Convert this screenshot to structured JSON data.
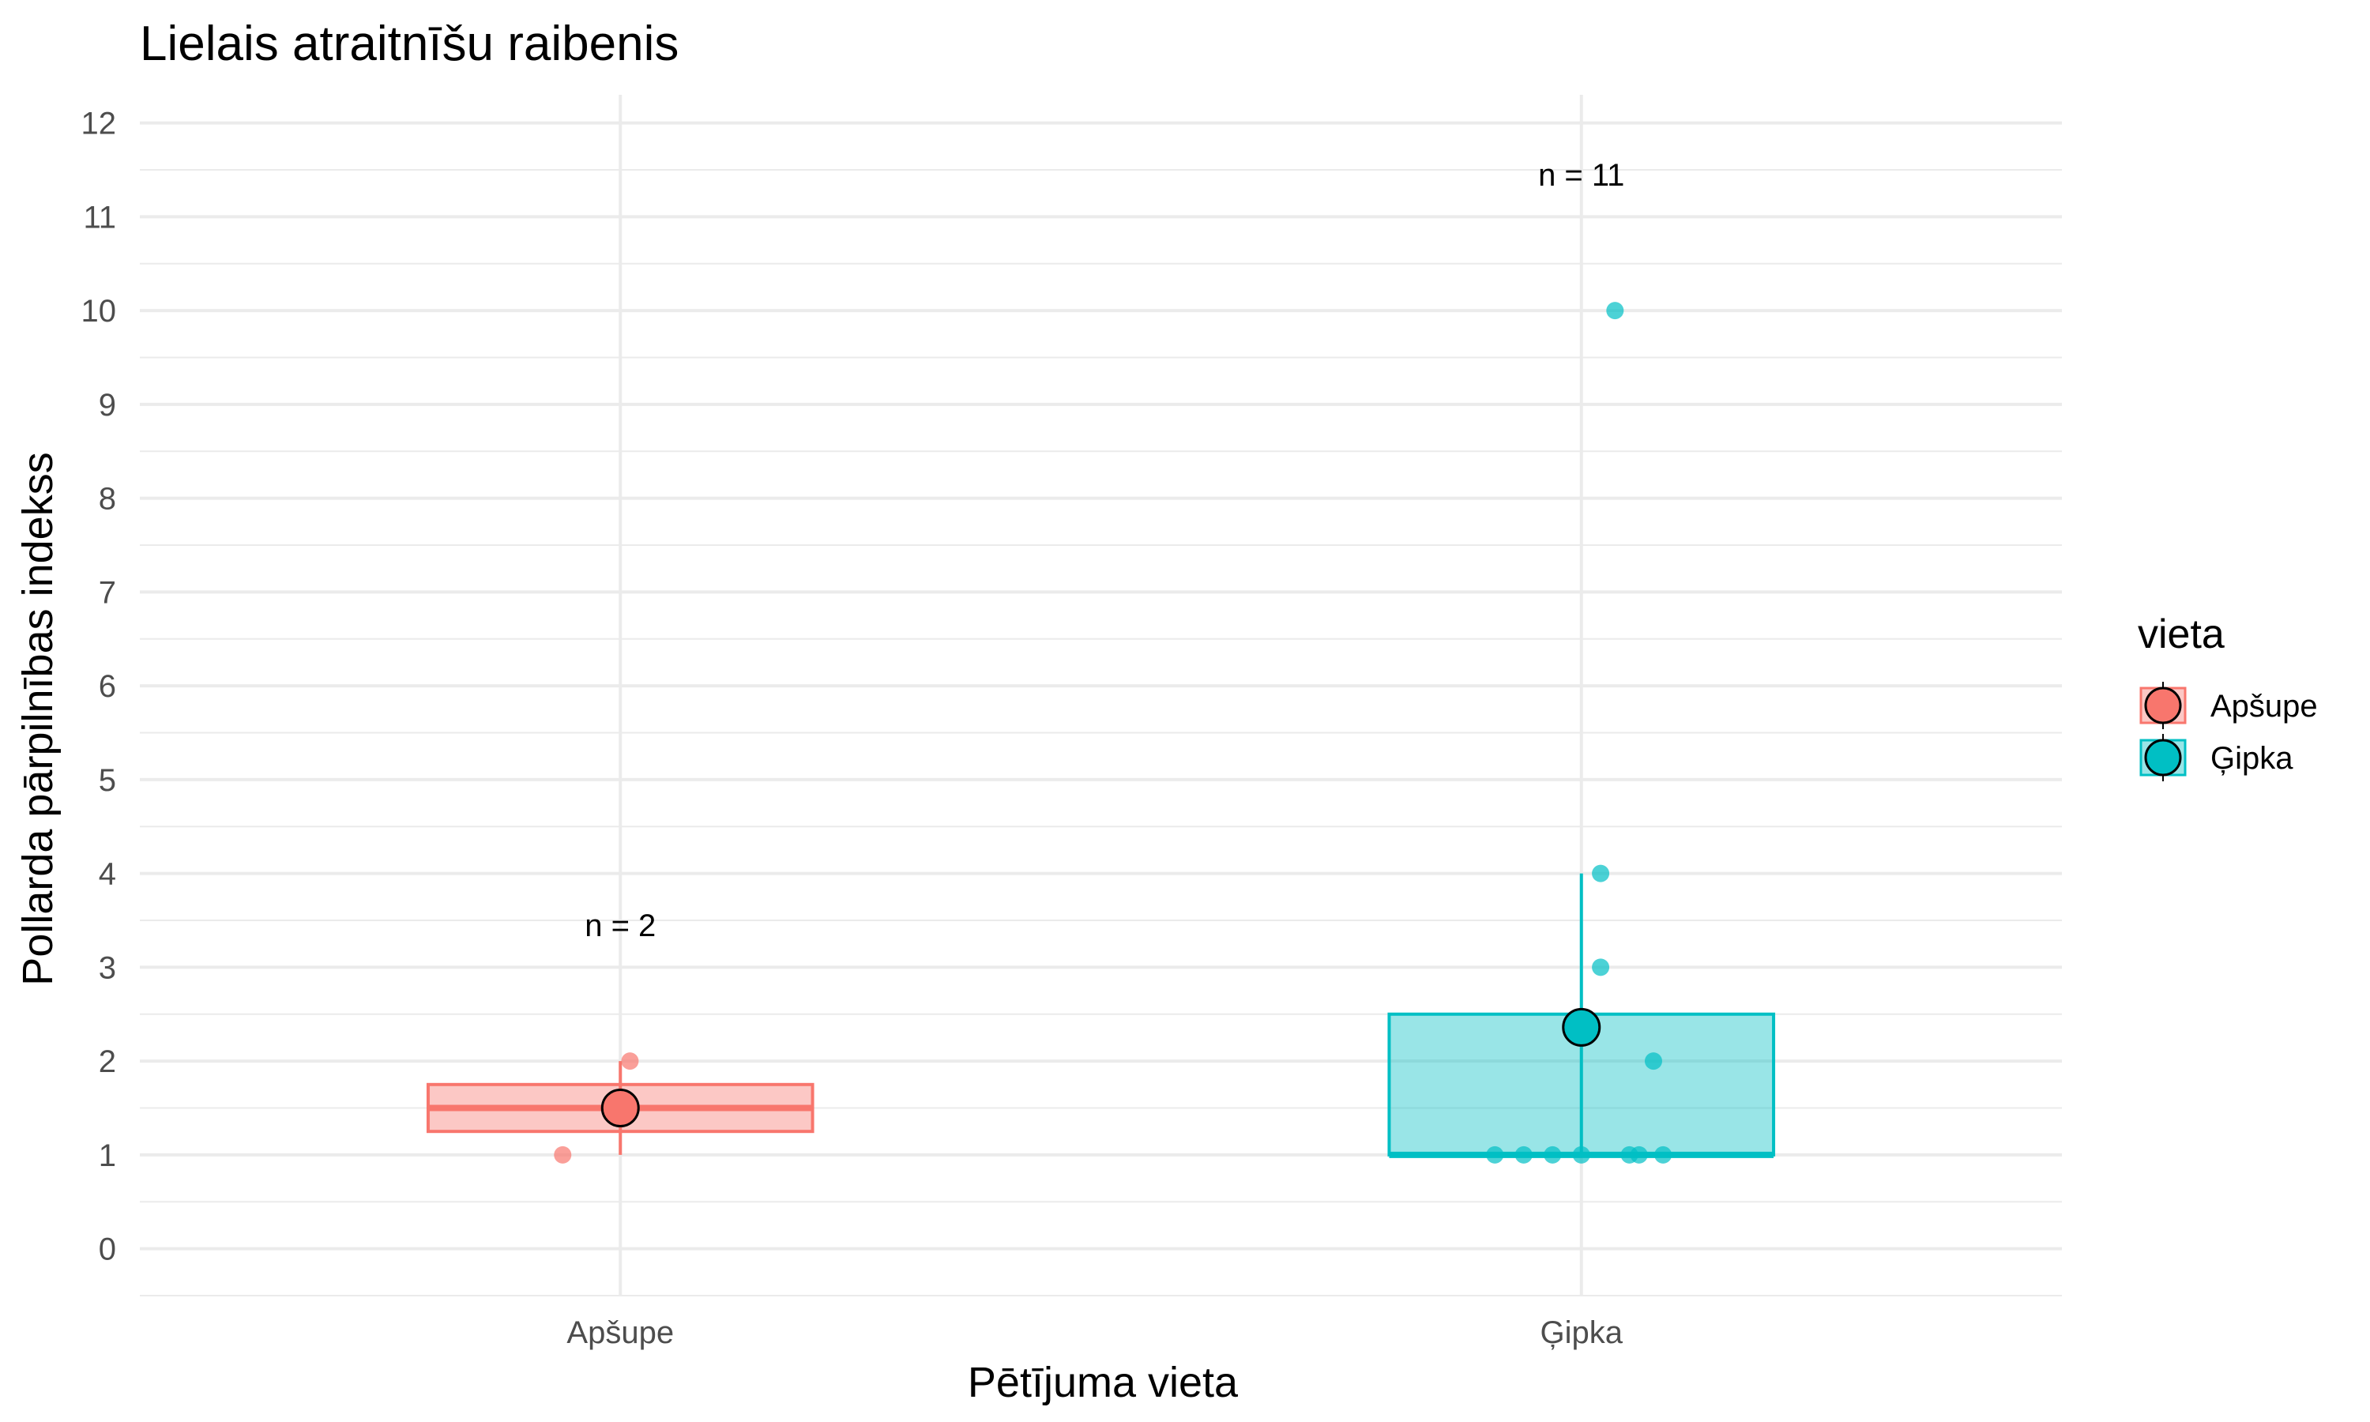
{
  "chart_data": {
    "type": "boxplot",
    "title": "Lielais atraitnīšu raibenis",
    "xlabel": "Pētījuma vieta",
    "ylabel": "Pollarda pārpilnības indekss",
    "ylim": [
      -0.5,
      12.3
    ],
    "yticks": [
      0,
      1,
      2,
      3,
      4,
      5,
      6,
      7,
      8,
      9,
      10,
      11,
      12
    ],
    "categories": [
      "Apšupe",
      "Ģipka"
    ],
    "legend": {
      "title": "vieta",
      "position": "right",
      "entries": [
        "Apšupe",
        "Ģipka"
      ]
    },
    "colors": {
      "Apšupe": "#F8766D",
      "Ģipka": "#00BFC4"
    },
    "series": [
      {
        "name": "Apšupe",
        "q1": 1.25,
        "median": 1.5,
        "q3": 1.75,
        "whisker_low": 1,
        "whisker_high": 2,
        "mean": 1.5,
        "points": [
          {
            "jitter": -0.06,
            "y": 1
          },
          {
            "jitter": 0.01,
            "y": 2
          }
        ],
        "annotation": "n = 2",
        "annotation_y": 3.45
      },
      {
        "name": "Ģipka",
        "q1": 1,
        "median": 1,
        "q3": 2.5,
        "whisker_low": 1,
        "whisker_high": 4,
        "mean": 2.36,
        "points": [
          {
            "jitter": -0.09,
            "y": 1
          },
          {
            "jitter": -0.06,
            "y": 1
          },
          {
            "jitter": -0.03,
            "y": 1
          },
          {
            "jitter": 0.0,
            "y": 1
          },
          {
            "jitter": 0.05,
            "y": 1
          },
          {
            "jitter": 0.06,
            "y": 1
          },
          {
            "jitter": 0.085,
            "y": 1
          },
          {
            "jitter": 0.075,
            "y": 2
          },
          {
            "jitter": 0.02,
            "y": 3
          },
          {
            "jitter": 0.02,
            "y": 4
          },
          {
            "jitter": 0.035,
            "y": 10
          }
        ],
        "annotation": "n = 11",
        "annotation_y": 11.45
      }
    ]
  }
}
